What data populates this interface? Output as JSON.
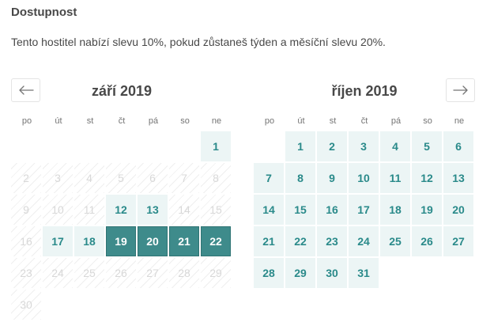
{
  "section": {
    "heading": "Dostupnost",
    "notice": "Tento hostitel nabízí slevu 10%, pokud zůstaneš týden a  měsíční slevu 20%."
  },
  "nav": {
    "prev_icon": "arrow-left-icon",
    "next_icon": "arrow-right-icon"
  },
  "weekdays": [
    "po",
    "út",
    "st",
    "čt",
    "pá",
    "so",
    "ne"
  ],
  "months": [
    {
      "title": "září 2019",
      "first_weekday": 6,
      "days": [
        {
          "day": "1",
          "state": "available"
        },
        {
          "day": "2",
          "state": "unavailable"
        },
        {
          "day": "3",
          "state": "unavailable"
        },
        {
          "day": "4",
          "state": "unavailable"
        },
        {
          "day": "5",
          "state": "unavailable"
        },
        {
          "day": "6",
          "state": "unavailable"
        },
        {
          "day": "7",
          "state": "unavailable"
        },
        {
          "day": "8",
          "state": "unavailable"
        },
        {
          "day": "9",
          "state": "unavailable"
        },
        {
          "day": "10",
          "state": "unavailable"
        },
        {
          "day": "11",
          "state": "unavailable"
        },
        {
          "day": "12",
          "state": "available"
        },
        {
          "day": "13",
          "state": "available"
        },
        {
          "day": "14",
          "state": "unavailable"
        },
        {
          "day": "15",
          "state": "unavailable"
        },
        {
          "day": "16",
          "state": "unavailable"
        },
        {
          "day": "17",
          "state": "available"
        },
        {
          "day": "18",
          "state": "available"
        },
        {
          "day": "19",
          "state": "selected"
        },
        {
          "day": "20",
          "state": "selected"
        },
        {
          "day": "21",
          "state": "selected"
        },
        {
          "day": "22",
          "state": "selected"
        },
        {
          "day": "23",
          "state": "unavailable"
        },
        {
          "day": "24",
          "state": "unavailable"
        },
        {
          "day": "25",
          "state": "unavailable"
        },
        {
          "day": "26",
          "state": "unavailable"
        },
        {
          "day": "27",
          "state": "unavailable"
        },
        {
          "day": "28",
          "state": "unavailable"
        },
        {
          "day": "29",
          "state": "unavailable"
        },
        {
          "day": "30",
          "state": "unavailable"
        }
      ]
    },
    {
      "title": "říjen 2019",
      "first_weekday": 1,
      "days": [
        {
          "day": "1",
          "state": "available"
        },
        {
          "day": "2",
          "state": "available"
        },
        {
          "day": "3",
          "state": "available"
        },
        {
          "day": "4",
          "state": "available"
        },
        {
          "day": "5",
          "state": "available"
        },
        {
          "day": "6",
          "state": "available"
        },
        {
          "day": "7",
          "state": "available"
        },
        {
          "day": "8",
          "state": "available"
        },
        {
          "day": "9",
          "state": "available"
        },
        {
          "day": "10",
          "state": "available"
        },
        {
          "day": "11",
          "state": "available"
        },
        {
          "day": "12",
          "state": "available"
        },
        {
          "day": "13",
          "state": "available"
        },
        {
          "day": "14",
          "state": "available"
        },
        {
          "day": "15",
          "state": "available"
        },
        {
          "day": "16",
          "state": "available"
        },
        {
          "day": "17",
          "state": "available"
        },
        {
          "day": "18",
          "state": "available"
        },
        {
          "day": "19",
          "state": "available"
        },
        {
          "day": "20",
          "state": "available"
        },
        {
          "day": "21",
          "state": "available"
        },
        {
          "day": "22",
          "state": "available"
        },
        {
          "day": "23",
          "state": "available"
        },
        {
          "day": "24",
          "state": "available"
        },
        {
          "day": "25",
          "state": "available"
        },
        {
          "day": "26",
          "state": "available"
        },
        {
          "day": "27",
          "state": "available"
        },
        {
          "day": "28",
          "state": "available"
        },
        {
          "day": "29",
          "state": "available"
        },
        {
          "day": "30",
          "state": "available"
        },
        {
          "day": "31",
          "state": "available"
        }
      ]
    }
  ],
  "colors": {
    "selected": "#3e8b8b",
    "available_bg": "#ecf5f5",
    "available_text": "#2a8a8a",
    "unavailable_text": "#d8d8d8"
  }
}
